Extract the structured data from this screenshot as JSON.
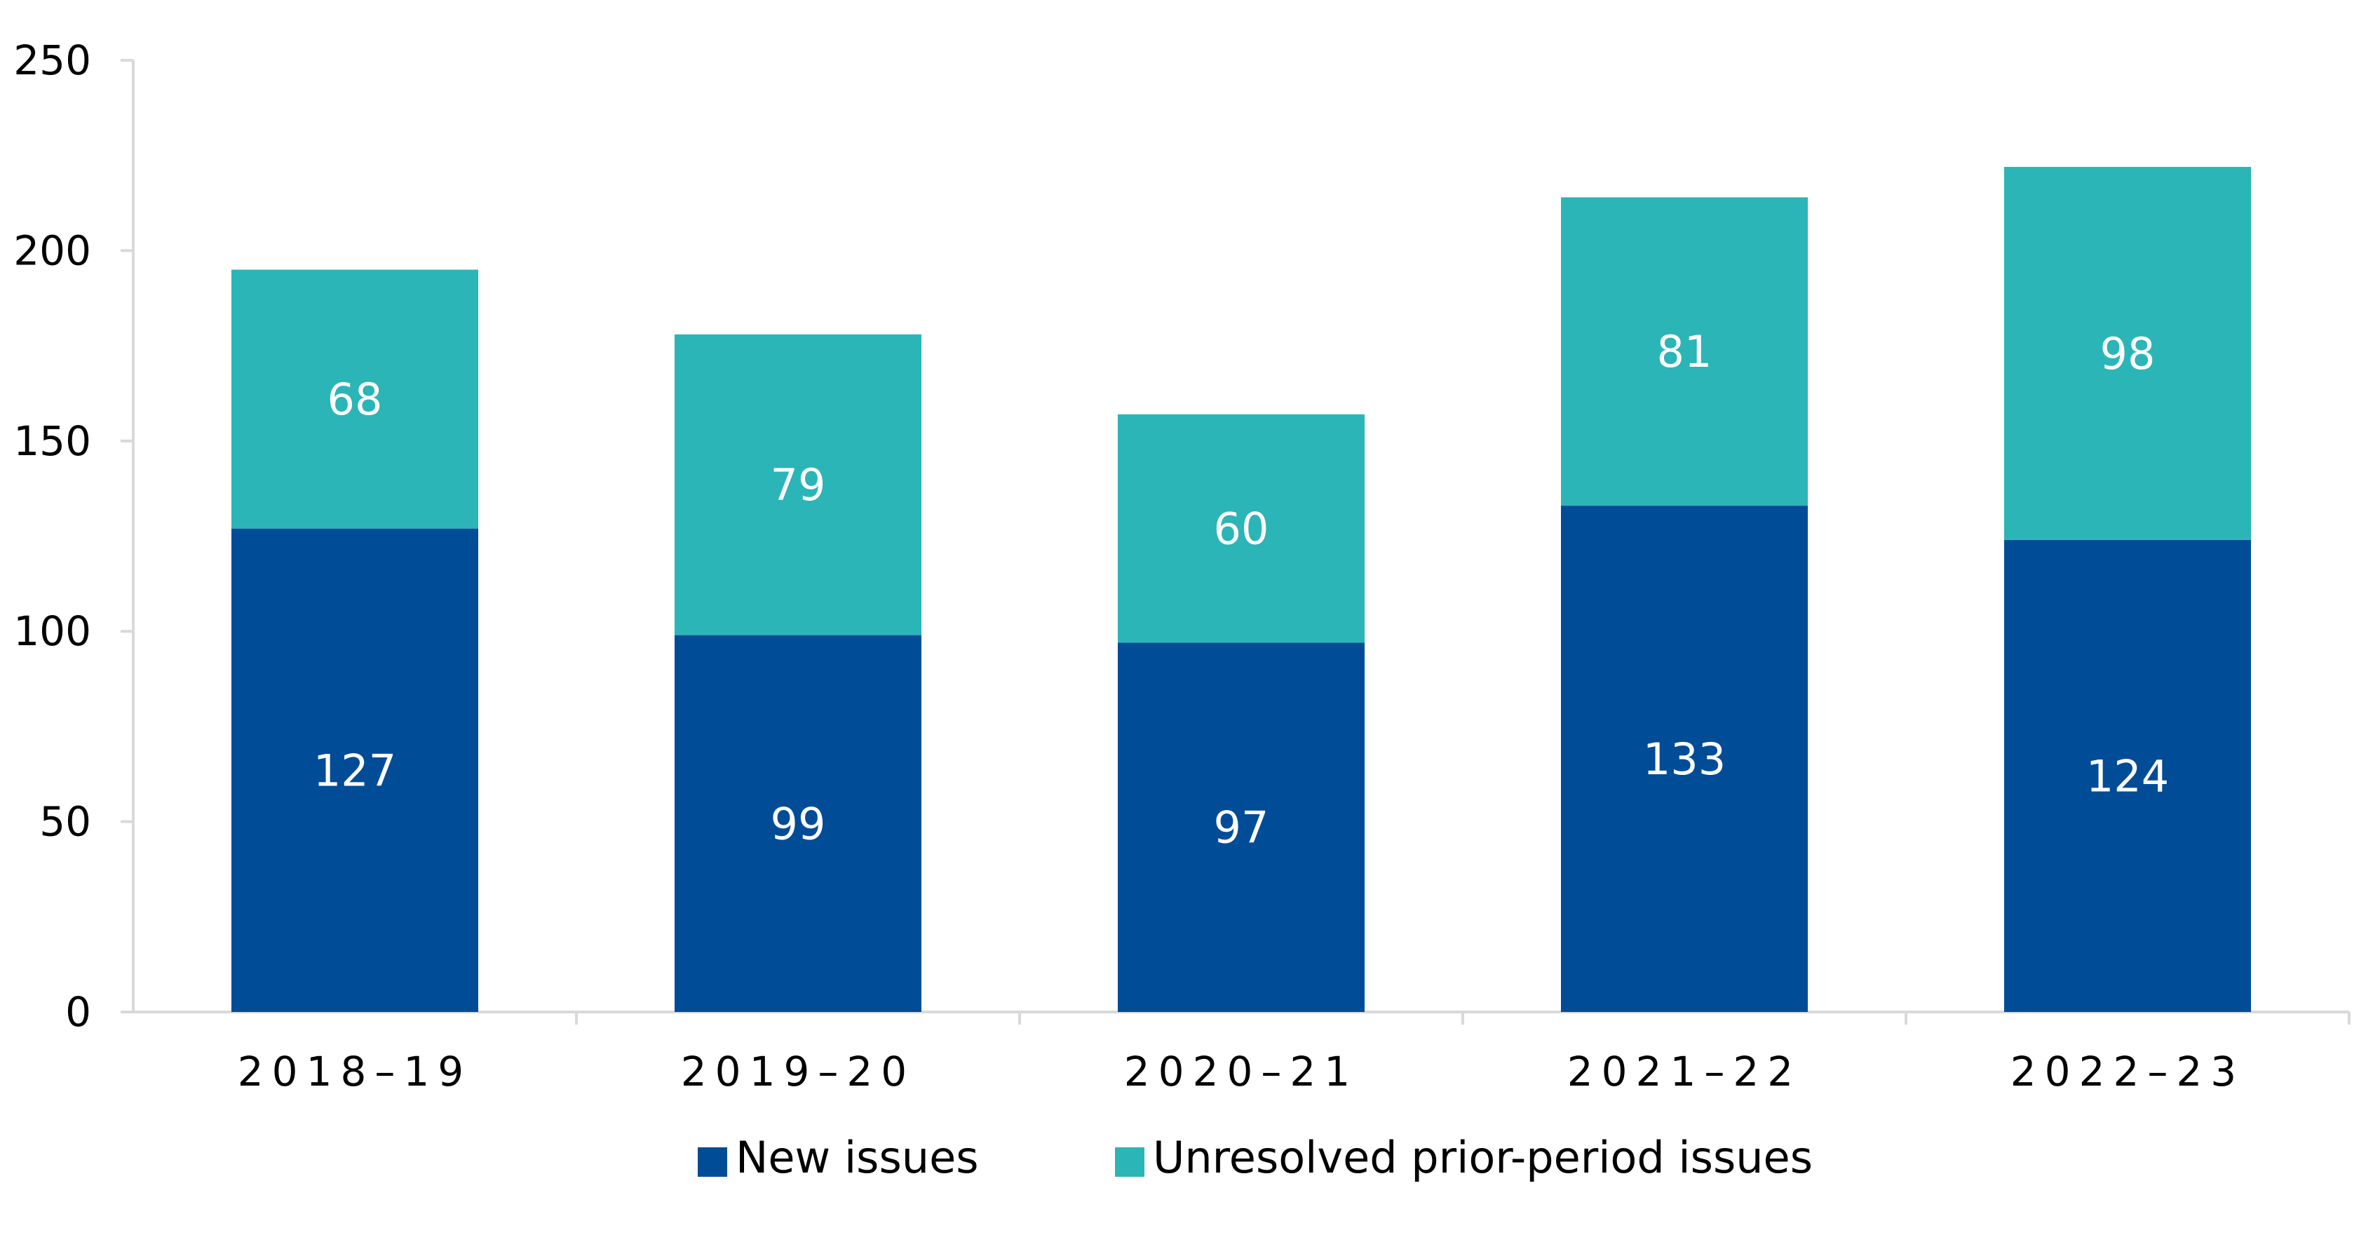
{
  "chart_data": {
    "type": "bar",
    "stacked": true,
    "title": "",
    "xlabel": "",
    "ylabel": "",
    "categories": [
      "2018–19",
      "2019–20",
      "2020–21",
      "2021–22",
      "2022–23"
    ],
    "series": [
      {
        "name": "New issues",
        "color": "#004C97",
        "values": [
          127,
          99,
          97,
          133,
          124
        ]
      },
      {
        "name": "Unresolved prior-period issues",
        "color": "#2BB5B7",
        "values": [
          68,
          79,
          60,
          81,
          98
        ]
      }
    ],
    "ylim": [
      0,
      250
    ],
    "yticks": [
      0,
      50,
      100,
      150,
      200,
      250
    ],
    "grid": false,
    "legend_position": "bottom"
  }
}
